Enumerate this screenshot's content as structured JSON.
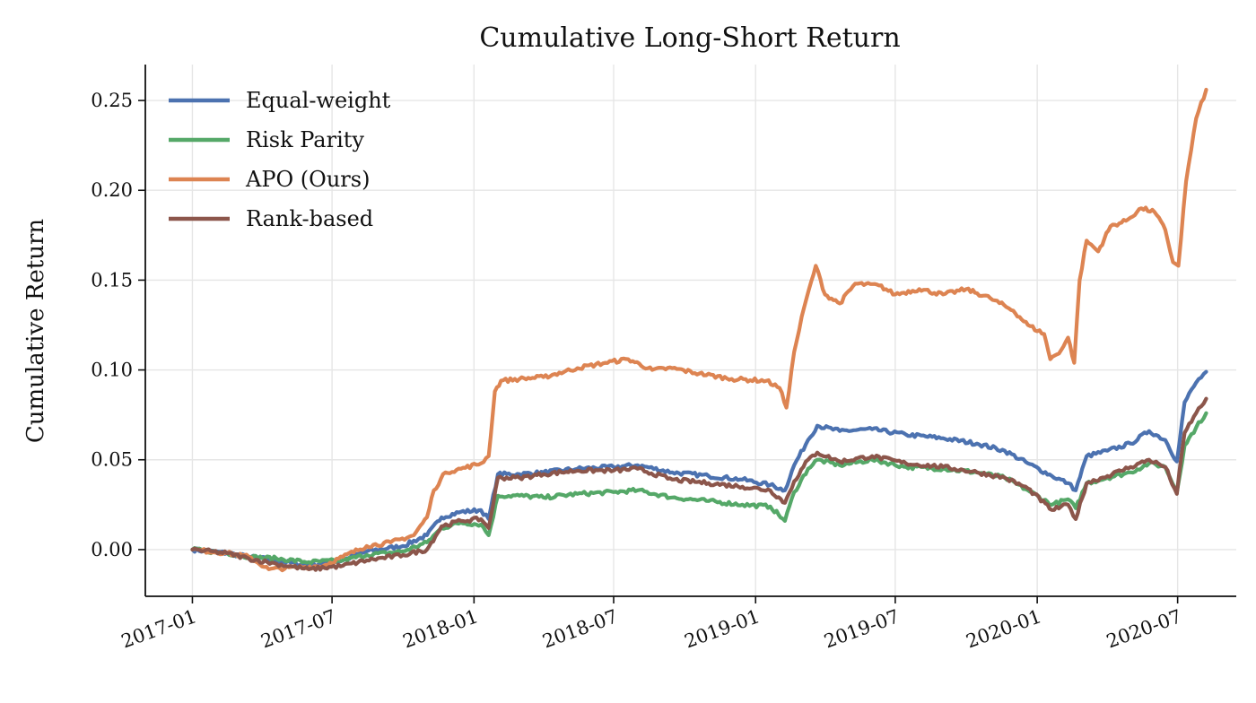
{
  "chart_data": {
    "type": "line",
    "title": "Cumulative Long-Short Return",
    "xlabel": "",
    "ylabel": "Cumulative Return",
    "xlim": [
      "2016-11-01",
      "2020-09-15"
    ],
    "ylim": [
      -0.026,
      0.27
    ],
    "x_ticks": [
      "2017-01",
      "2017-07",
      "2018-01",
      "2018-07",
      "2019-01",
      "2019-07",
      "2020-01",
      "2020-07"
    ],
    "y_ticks": [
      "0.00",
      "0.05",
      "0.10",
      "0.15",
      "0.20",
      "0.25"
    ],
    "y_tick_values": [
      0.0,
      0.05,
      0.1,
      0.15,
      0.2,
      0.25
    ],
    "grid": true,
    "legend_position": "top-left",
    "series": [
      {
        "name": "Equal-weight",
        "color": "#4c72b0",
        "points": [
          [
            "2017-01-01",
            0.0
          ],
          [
            "2017-02-15",
            -0.002
          ],
          [
            "2017-03-15",
            -0.004
          ],
          [
            "2017-04-20",
            -0.006
          ],
          [
            "2017-06-01",
            -0.009
          ],
          [
            "2017-07-15",
            -0.006
          ],
          [
            "2017-08-15",
            -0.001
          ],
          [
            "2017-10-01",
            0.002
          ],
          [
            "2017-11-01",
            0.008
          ],
          [
            "2017-11-20",
            0.018
          ],
          [
            "2017-12-15",
            0.021
          ],
          [
            "2018-01-10",
            0.022
          ],
          [
            "2018-01-20",
            0.017
          ],
          [
            "2018-02-01",
            0.042
          ],
          [
            "2018-03-01",
            0.042
          ],
          [
            "2018-04-01",
            0.043
          ],
          [
            "2018-05-15",
            0.045
          ],
          [
            "2018-07-01",
            0.046
          ],
          [
            "2018-08-01",
            0.047
          ],
          [
            "2018-09-15",
            0.043
          ],
          [
            "2018-11-01",
            0.041
          ],
          [
            "2018-12-15",
            0.039
          ],
          [
            "2019-01-20",
            0.036
          ],
          [
            "2019-02-08",
            0.033
          ],
          [
            "2019-02-20",
            0.047
          ],
          [
            "2019-03-10",
            0.061
          ],
          [
            "2019-03-22",
            0.069
          ],
          [
            "2019-04-20",
            0.066
          ],
          [
            "2019-06-01",
            0.067
          ],
          [
            "2019-07-15",
            0.064
          ],
          [
            "2019-09-01",
            0.062
          ],
          [
            "2019-10-15",
            0.059
          ],
          [
            "2019-11-20",
            0.055
          ],
          [
            "2019-12-20",
            0.048
          ],
          [
            "2020-01-20",
            0.041
          ],
          [
            "2020-02-10",
            0.037
          ],
          [
            "2020-02-20",
            0.033
          ],
          [
            "2020-03-05",
            0.052
          ],
          [
            "2020-04-01",
            0.055
          ],
          [
            "2020-05-01",
            0.059
          ],
          [
            "2020-05-25",
            0.066
          ],
          [
            "2020-06-15",
            0.061
          ],
          [
            "2020-06-30",
            0.049
          ],
          [
            "2020-07-10",
            0.082
          ],
          [
            "2020-07-25",
            0.093
          ],
          [
            "2020-08-07",
            0.099
          ]
        ]
      },
      {
        "name": "Risk Parity",
        "color": "#55a868",
        "points": [
          [
            "2017-01-01",
            0.0
          ],
          [
            "2017-02-15",
            -0.002
          ],
          [
            "2017-03-15",
            -0.004
          ],
          [
            "2017-04-20",
            -0.005
          ],
          [
            "2017-06-01",
            -0.007
          ],
          [
            "2017-07-15",
            -0.006
          ],
          [
            "2017-08-15",
            -0.003
          ],
          [
            "2017-10-01",
            -0.001
          ],
          [
            "2017-11-01",
            0.004
          ],
          [
            "2017-11-20",
            0.012
          ],
          [
            "2017-12-15",
            0.015
          ],
          [
            "2018-01-10",
            0.014
          ],
          [
            "2018-01-20",
            0.008
          ],
          [
            "2018-02-01",
            0.03
          ],
          [
            "2018-03-01",
            0.03
          ],
          [
            "2018-04-01",
            0.029
          ],
          [
            "2018-05-15",
            0.031
          ],
          [
            "2018-07-01",
            0.032
          ],
          [
            "2018-08-01",
            0.033
          ],
          [
            "2018-09-15",
            0.029
          ],
          [
            "2018-11-01",
            0.027
          ],
          [
            "2018-12-15",
            0.025
          ],
          [
            "2019-01-20",
            0.024
          ],
          [
            "2019-02-08",
            0.016
          ],
          [
            "2019-02-20",
            0.032
          ],
          [
            "2019-03-10",
            0.045
          ],
          [
            "2019-03-22",
            0.05
          ],
          [
            "2019-04-20",
            0.047
          ],
          [
            "2019-06-01",
            0.05
          ],
          [
            "2019-07-15",
            0.046
          ],
          [
            "2019-09-01",
            0.045
          ],
          [
            "2019-10-15",
            0.043
          ],
          [
            "2019-11-20",
            0.04
          ],
          [
            "2019-12-20",
            0.033
          ],
          [
            "2020-01-20",
            0.025
          ],
          [
            "2020-02-10",
            0.028
          ],
          [
            "2020-02-20",
            0.023
          ],
          [
            "2020-03-05",
            0.037
          ],
          [
            "2020-04-01",
            0.04
          ],
          [
            "2020-05-01",
            0.043
          ],
          [
            "2020-05-25",
            0.048
          ],
          [
            "2020-06-15",
            0.046
          ],
          [
            "2020-06-30",
            0.032
          ],
          [
            "2020-07-10",
            0.058
          ],
          [
            "2020-07-25",
            0.068
          ],
          [
            "2020-08-07",
            0.076
          ]
        ]
      },
      {
        "name": "APO (Ours)",
        "color": "#dd8452",
        "points": [
          [
            "2017-01-01",
            0.0
          ],
          [
            "2017-02-15",
            -0.002
          ],
          [
            "2017-03-15",
            -0.004
          ],
          [
            "2017-04-10",
            -0.011
          ],
          [
            "2017-05-15",
            -0.01
          ],
          [
            "2017-06-20",
            -0.009
          ],
          [
            "2017-07-15",
            -0.004
          ],
          [
            "2017-08-15",
            0.002
          ],
          [
            "2017-09-15",
            0.004
          ],
          [
            "2017-10-15",
            0.008
          ],
          [
            "2017-11-01",
            0.018
          ],
          [
            "2017-11-10",
            0.033
          ],
          [
            "2017-11-25",
            0.043
          ],
          [
            "2017-12-15",
            0.045
          ],
          [
            "2018-01-10",
            0.048
          ],
          [
            "2018-01-20",
            0.052
          ],
          [
            "2018-01-28",
            0.088
          ],
          [
            "2018-02-05",
            0.094
          ],
          [
            "2018-03-01",
            0.095
          ],
          [
            "2018-04-01",
            0.096
          ],
          [
            "2018-05-15",
            0.101
          ],
          [
            "2018-06-20",
            0.104
          ],
          [
            "2018-07-20",
            0.106
          ],
          [
            "2018-08-20",
            0.1
          ],
          [
            "2018-09-15",
            0.101
          ],
          [
            "2018-10-20",
            0.098
          ],
          [
            "2018-12-01",
            0.095
          ],
          [
            "2019-01-15",
            0.094
          ],
          [
            "2019-02-01",
            0.09
          ],
          [
            "2019-02-10",
            0.079
          ],
          [
            "2019-02-20",
            0.11
          ],
          [
            "2019-03-05",
            0.135
          ],
          [
            "2019-03-20",
            0.158
          ],
          [
            "2019-04-01",
            0.142
          ],
          [
            "2019-04-20",
            0.137
          ],
          [
            "2019-05-10",
            0.148
          ],
          [
            "2019-06-10",
            0.147
          ],
          [
            "2019-07-01",
            0.142
          ],
          [
            "2019-08-01",
            0.145
          ],
          [
            "2019-09-01",
            0.142
          ],
          [
            "2019-10-01",
            0.145
          ],
          [
            "2019-11-01",
            0.14
          ],
          [
            "2019-12-01",
            0.133
          ],
          [
            "2019-12-20",
            0.125
          ],
          [
            "2020-01-10",
            0.12
          ],
          [
            "2020-01-18",
            0.106
          ],
          [
            "2020-02-01",
            0.111
          ],
          [
            "2020-02-10",
            0.118
          ],
          [
            "2020-02-18",
            0.104
          ],
          [
            "2020-02-25",
            0.15
          ],
          [
            "2020-03-05",
            0.172
          ],
          [
            "2020-03-20",
            0.166
          ],
          [
            "2020-04-05",
            0.18
          ],
          [
            "2020-04-25",
            0.183
          ],
          [
            "2020-05-15",
            0.19
          ],
          [
            "2020-06-01",
            0.188
          ],
          [
            "2020-06-15",
            0.178
          ],
          [
            "2020-06-25",
            0.16
          ],
          [
            "2020-07-02",
            0.158
          ],
          [
            "2020-07-12",
            0.205
          ],
          [
            "2020-07-25",
            0.24
          ],
          [
            "2020-08-07",
            0.256
          ]
        ]
      },
      {
        "name": "Rank-based",
        "color": "#8c564b",
        "points": [
          [
            "2017-01-01",
            0.0
          ],
          [
            "2017-02-15",
            -0.002
          ],
          [
            "2017-03-15",
            -0.005
          ],
          [
            "2017-04-20",
            -0.008
          ],
          [
            "2017-06-01",
            -0.011
          ],
          [
            "2017-07-15",
            -0.009
          ],
          [
            "2017-08-15",
            -0.006
          ],
          [
            "2017-10-01",
            -0.003
          ],
          [
            "2017-11-01",
            0.0
          ],
          [
            "2017-11-20",
            0.013
          ],
          [
            "2017-12-15",
            0.016
          ],
          [
            "2018-01-10",
            0.017
          ],
          [
            "2018-01-20",
            0.012
          ],
          [
            "2018-02-01",
            0.04
          ],
          [
            "2018-03-01",
            0.04
          ],
          [
            "2018-04-01",
            0.042
          ],
          [
            "2018-05-15",
            0.044
          ],
          [
            "2018-07-01",
            0.044
          ],
          [
            "2018-08-01",
            0.045
          ],
          [
            "2018-09-15",
            0.039
          ],
          [
            "2018-11-01",
            0.037
          ],
          [
            "2018-12-15",
            0.035
          ],
          [
            "2019-01-20",
            0.033
          ],
          [
            "2019-02-08",
            0.026
          ],
          [
            "2019-02-20",
            0.038
          ],
          [
            "2019-03-10",
            0.05
          ],
          [
            "2019-03-22",
            0.054
          ],
          [
            "2019-04-20",
            0.049
          ],
          [
            "2019-06-01",
            0.052
          ],
          [
            "2019-07-15",
            0.048
          ],
          [
            "2019-09-01",
            0.046
          ],
          [
            "2019-10-15",
            0.043
          ],
          [
            "2019-11-20",
            0.04
          ],
          [
            "2019-12-20",
            0.034
          ],
          [
            "2020-01-20",
            0.022
          ],
          [
            "2020-02-10",
            0.025
          ],
          [
            "2020-02-20",
            0.017
          ],
          [
            "2020-03-05",
            0.037
          ],
          [
            "2020-04-01",
            0.041
          ],
          [
            "2020-05-01",
            0.046
          ],
          [
            "2020-05-25",
            0.05
          ],
          [
            "2020-06-15",
            0.046
          ],
          [
            "2020-06-30",
            0.031
          ],
          [
            "2020-07-10",
            0.065
          ],
          [
            "2020-07-25",
            0.076
          ],
          [
            "2020-08-07",
            0.084
          ]
        ]
      }
    ]
  }
}
